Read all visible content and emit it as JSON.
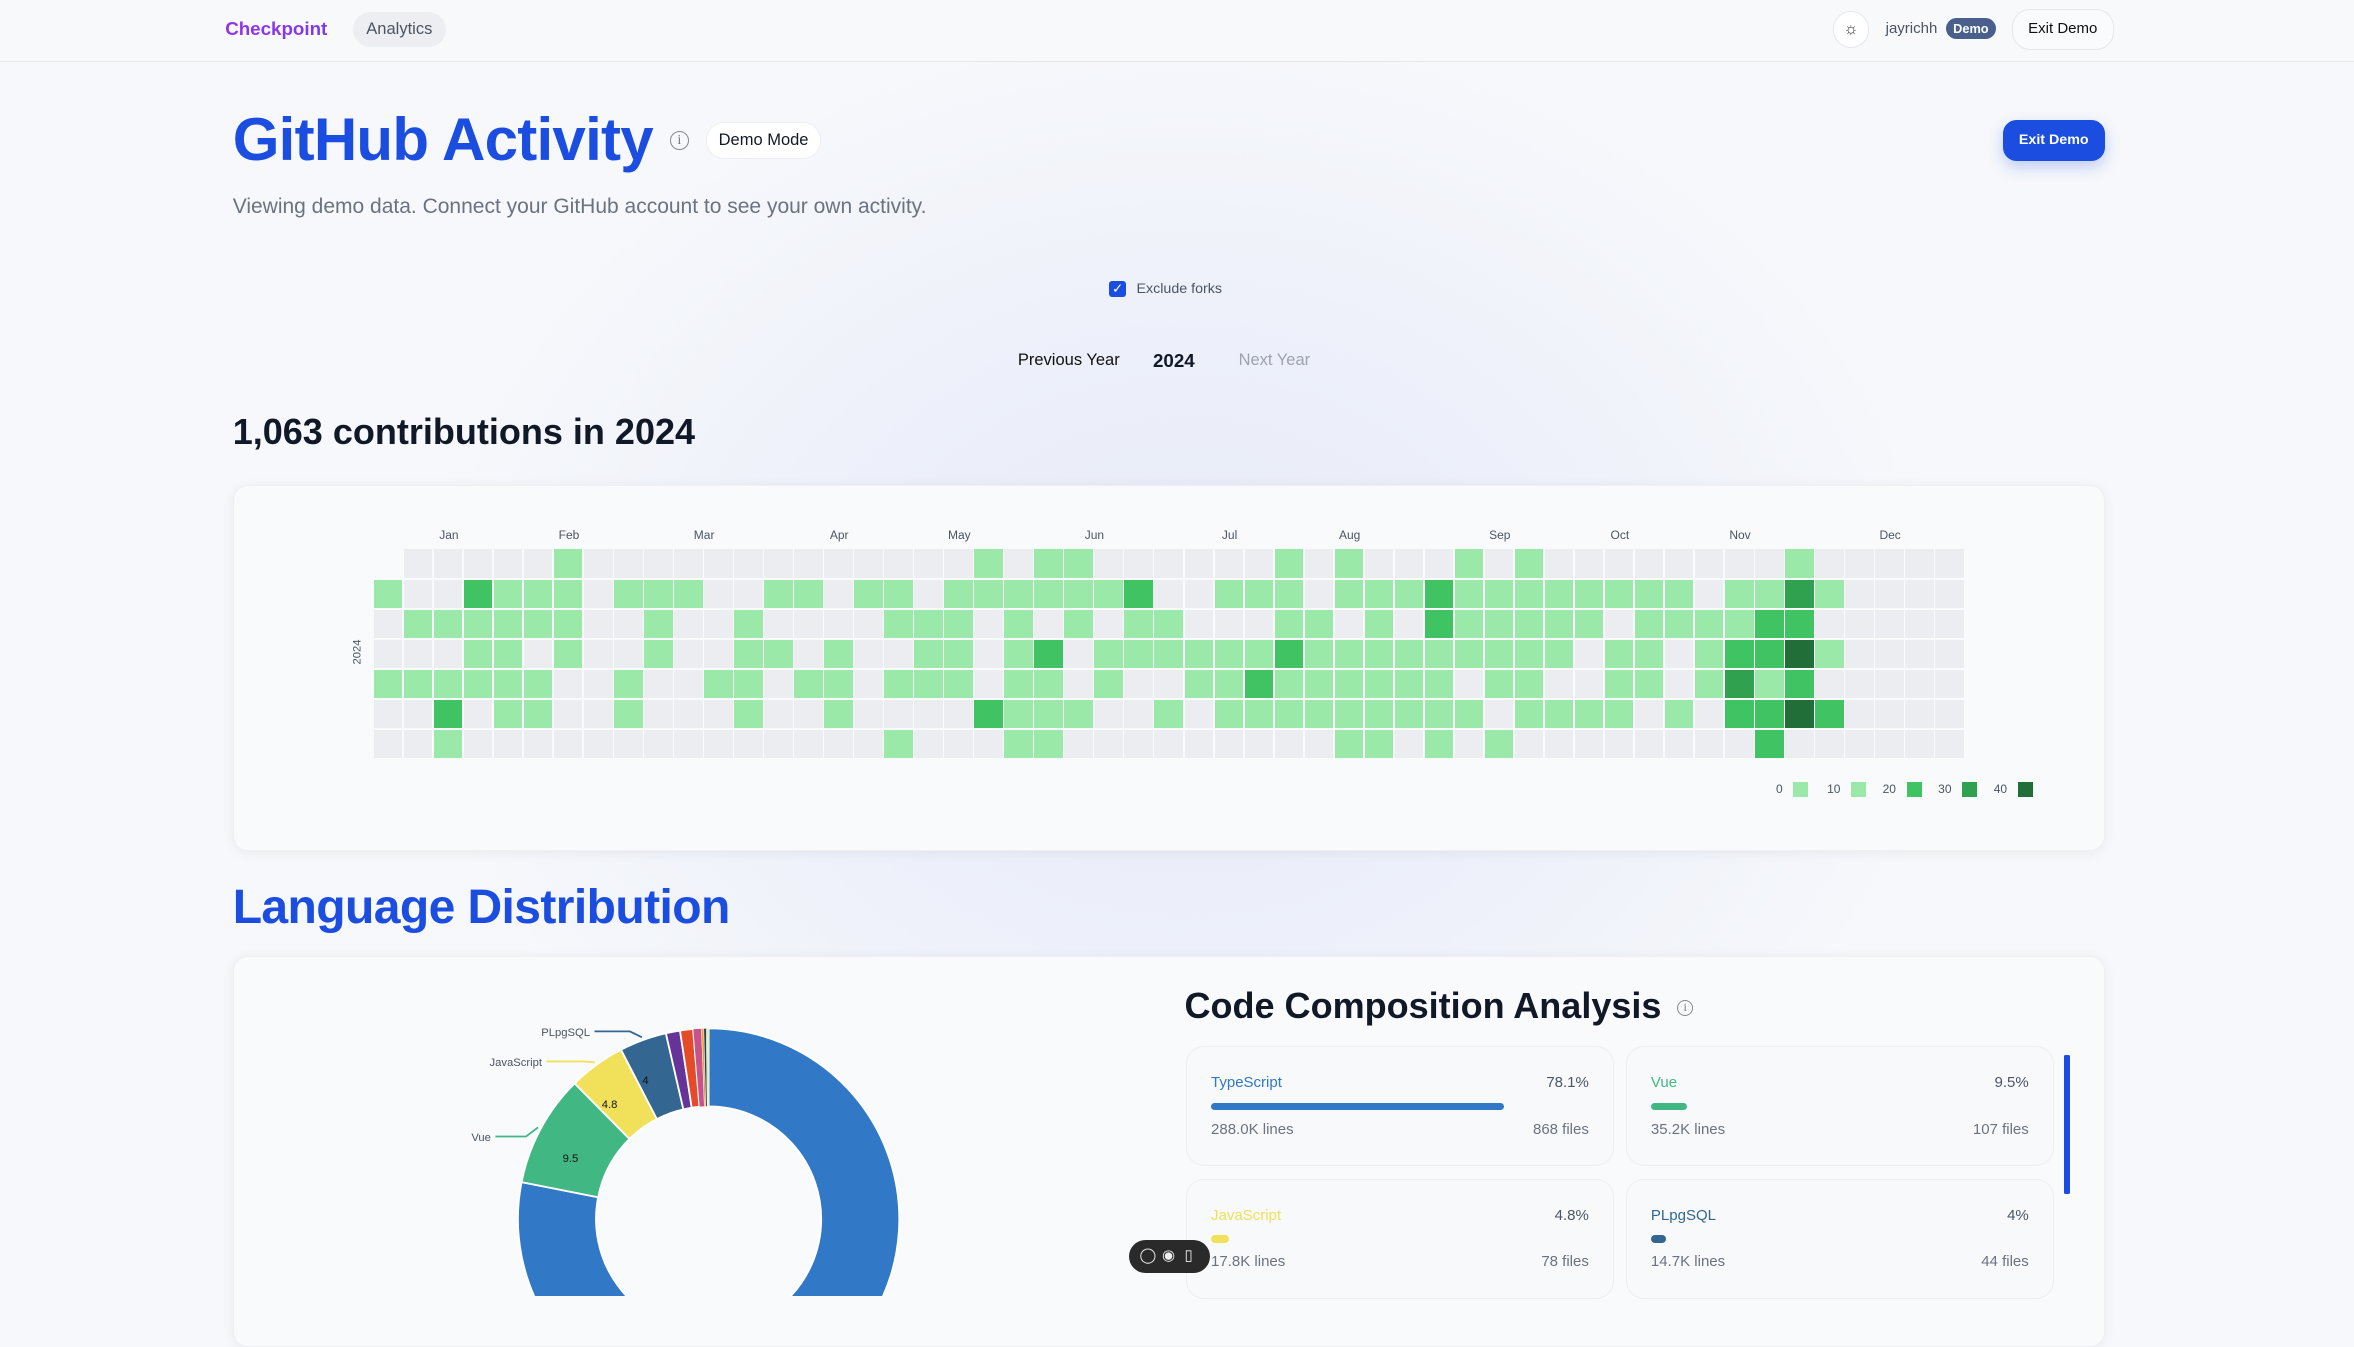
{
  "nav": {
    "brand": "Checkpoint",
    "analytics": "Analytics",
    "theme_icon": "sun-icon",
    "user": "jayrichh",
    "badge": "Demo",
    "exit": "Exit Demo"
  },
  "header": {
    "title": "GitHub Activity",
    "demo_mode": "Demo Mode",
    "exit_demo": "Exit Demo",
    "subtitle": "Viewing demo data. Connect your GitHub account to see your own activity."
  },
  "filters": {
    "exclude_forks": "Exclude forks",
    "exclude_forks_checked": true
  },
  "year_nav": {
    "prev": "Previous Year",
    "current": "2024",
    "next": "Next Year"
  },
  "contributions": {
    "heading": "1,063 contributions in 2024"
  },
  "colors": {
    "accent": "#1a4de0",
    "levels": [
      "#ebedf0",
      "#9be9a8",
      "#40c463",
      "#30a14e",
      "#216e39"
    ]
  },
  "chart_data": [
    {
      "type": "heatmap",
      "year_label": "2024",
      "months": [
        "Jan",
        "Feb",
        "Mar",
        "Apr",
        "May",
        "Jun",
        "Jul",
        "Aug",
        "Sep",
        "Oct",
        "Nov",
        "Dec"
      ],
      "legend": {
        "labels": [
          "0",
          "10",
          "20",
          "30",
          "40"
        ],
        "colors": [
          "#9be9a8",
          "#9be9a8",
          "#40c463",
          "#30a14e",
          "#216e39"
        ]
      },
      "level_rows_sun_to_sat": [
        "-0000010000000000000101100000010100010100000000100000",
        "10021110111001101101111112001110111211111111011310000",
        "01111110010010000111010101100011010211111011112200000",
        "00011010010011010011012011111121111111110110122410000-",
        "11111100100110110111011010011211111101100110131200000-",
        "00201100100010010000211100101111111110111101022420000-",
        "00100000000000000100011000000000110101000000002000000-"
      ]
    },
    {
      "type": "pie",
      "donut": true,
      "title": "Language Distribution",
      "slices": [
        {
          "label": "TypeScript",
          "value": 78.1,
          "color": "#3178c6"
        },
        {
          "label": "Vue",
          "value": 9.5,
          "color": "#41b883"
        },
        {
          "label": "JavaScript",
          "value": 4.8,
          "color": "#f1e05a"
        },
        {
          "label": "PLpgSQL",
          "value": 4,
          "color": "#336791"
        },
        {
          "value": 1.2,
          "color": "#663399"
        },
        {
          "value": 1.1,
          "color": "#e34c26"
        },
        {
          "value": 0.7,
          "color": "#c6538c"
        },
        {
          "value": 0.2,
          "color": "#f0a030"
        },
        {
          "value": 0.2,
          "color": "#1f3b66"
        },
        {
          "value": 0.1,
          "color": "#89e051"
        },
        {
          "value": 0.1,
          "color": "#e8d44d"
        }
      ]
    }
  ],
  "composition": {
    "title": "Code Composition Analysis",
    "items": [
      {
        "name": "TypeScript",
        "percent": "78.1%",
        "lines": "288.0K lines",
        "files": "868 files",
        "color": "#3178c6",
        "fraction": 0.781
      },
      {
        "name": "Vue",
        "percent": "9.5%",
        "lines": "35.2K lines",
        "files": "107 files",
        "color": "#41b883",
        "fraction": 0.095
      },
      {
        "name": "JavaScript",
        "percent": "4.8%",
        "lines": "17.8K lines",
        "files": "78 files",
        "color": "#f1e05a",
        "fraction": 0.048
      },
      {
        "name": "PLpgSQL",
        "percent": "4%",
        "lines": "14.7K lines",
        "files": "44 files",
        "color": "#336791",
        "fraction": 0.04
      }
    ]
  },
  "toolbar": {
    "icons": [
      "comment-icon",
      "eye-icon",
      "panel-icon"
    ]
  }
}
